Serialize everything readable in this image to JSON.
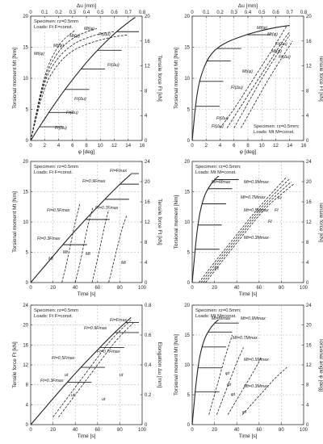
{
  "figure": {
    "panels": [
      {
        "id": "tl",
        "bottom_axis": {
          "label": "φ [deg]",
          "ticks": [
            "0",
            "2",
            "4",
            "6",
            "8",
            "10",
            "12",
            "14",
            "16"
          ]
        },
        "top_axis": {
          "label": "Δu [mm]",
          "ticks": [
            "0",
            "0.1",
            "0.2",
            "0.3",
            "0.4",
            "0.5",
            "0.6",
            "0.7",
            "0.8"
          ]
        },
        "left_axis": {
          "label": "Torsional moment Mt [Nm]",
          "ticks": [
            "0",
            "5",
            "10",
            "15",
            "20"
          ]
        },
        "right_axis": {
          "label": "Tensile force Ft [kN]",
          "ticks": [
            "0",
            "4",
            "8",
            "12",
            "16",
            "20"
          ]
        },
        "legend": [
          "Specimen: rz=0.5mm",
          "Loads: Ft F=const."
        ],
        "curve_labels": [
          "Mt(φ)",
          "Mt(φ)",
          "Mt(φ)",
          "Mt(φ)",
          "Ft(Δu)",
          "Ft(Δu)",
          "Ft(Δu)",
          "Ft(Δu)",
          "Ft(Δu)"
        ]
      },
      {
        "id": "tr",
        "bottom_axis": {
          "label": "φ [deg]",
          "ticks": [
            "0",
            "2",
            "4",
            "6",
            "8",
            "10",
            "12",
            "14",
            "16"
          ]
        },
        "top_axis": {
          "label": "Δu [mm]",
          "ticks": [
            "0",
            "0.1",
            "0.2",
            "0.3",
            "0.4",
            "0.5",
            "0.6",
            "0.7",
            "0.8"
          ]
        },
        "left_axis": {
          "label": "Torsional moment Mt [Nm]",
          "ticks": [
            "0",
            "5",
            "10",
            "15",
            "20"
          ]
        },
        "right_axis": {
          "label": "Tensile force Ft [kN]",
          "ticks": [
            "0",
            "4",
            "8",
            "12",
            "16",
            "20"
          ]
        },
        "legend": [
          "Specimen: rz=0.5mm;",
          "Loads: Mt M=const."
        ],
        "curve_labels": [
          "Mt(φ)",
          "Mt(φ)",
          "Ft(Δu)",
          "Mt(φ)",
          "Ft(Δu)",
          "Mt(φ)",
          "Ft(Δu)",
          "Ft(Δu)",
          "Ft(Δu)"
        ]
      },
      {
        "id": "ml",
        "bottom_axis": {
          "label": "Time [s]",
          "ticks": [
            "0",
            "20",
            "40",
            "60",
            "80",
            "100"
          ]
        },
        "left_axis": {
          "label": "Torsional moment Mt [Nm]",
          "ticks": [
            "0",
            "5",
            "10",
            "15",
            "20"
          ]
        },
        "right_axis": {
          "label": "Tensile force Ft [kN]",
          "ticks": [
            "0",
            "4",
            "8",
            "12",
            "16",
            "20",
            "24"
          ]
        },
        "legend": [
          "Specimen: rz=0.5mm",
          "Loads: Ft F=const."
        ],
        "curve_labels": [
          "Ft=Fmax",
          "Ft=0.9Fmax",
          "Ft=0.7Fmax",
          "Ft=0.5Fmax",
          "Ft=0.3Fmax",
          "Mt",
          "Mt",
          "Mt",
          "Mt"
        ]
      },
      {
        "id": "mr",
        "bottom_axis": {
          "label": "Time [s]",
          "ticks": [
            "0",
            "20",
            "40",
            "60",
            "80",
            "100"
          ]
        },
        "left_axis": {
          "label": "Torsional moment [Nm]",
          "ticks": [
            "0",
            "5",
            "10",
            "15",
            "20"
          ]
        },
        "right_axis": {
          "label": "Tensile force [kN]",
          "ticks": [
            "0",
            "4",
            "8",
            "12",
            "16",
            "20",
            "24"
          ]
        },
        "legend": [
          "Specimen: rz=0.5mm;",
          "Loads: Mt M=const."
        ],
        "curve_labels": [
          "Mt=Mmax",
          "Mt=0.9Mmax",
          "Mt=0.7Mmax",
          "Mt=0.5Mmax",
          "Mt=0.3Mmax",
          "Ft",
          "Ft",
          "Ft",
          "Ft"
        ]
      },
      {
        "id": "bl",
        "bottom_axis": {
          "label": "Time [s]",
          "ticks": [
            "0",
            "20",
            "40",
            "60",
            "80",
            "100"
          ]
        },
        "left_axis": {
          "label": "Tensile force Ft [kN]",
          "ticks": [
            "0",
            "4",
            "8",
            "12",
            "16",
            "20",
            "24"
          ]
        },
        "right_axis": {
          "label": "Elongation Δu [mm]",
          "ticks": [
            "0",
            "0.2",
            "0.4",
            "0.6",
            "0.8"
          ]
        },
        "legend": [
          "Specimen: rz=0.5mm",
          "Loads: Ft F=const."
        ],
        "curve_labels": [
          "Ft=Fmax",
          "Ft=0.9Fmax",
          "Ft=0.7Fmax",
          "Ft=0.5Fmax",
          "Ft=0.3Fmax",
          "ut",
          "ut",
          "ut",
          "ut"
        ]
      },
      {
        "id": "br",
        "bottom_axis": {
          "label": "Time [s]",
          "ticks": [
            "0",
            "20",
            "40",
            "60",
            "80",
            "100"
          ]
        },
        "left_axis": {
          "label": "Torsional moment Mt [Nm]",
          "ticks": [
            "0",
            "5",
            "10",
            "15",
            "20"
          ]
        },
        "right_axis": {
          "label": "Torsional angle φ [deg]",
          "ticks": [
            "0",
            "4",
            "8",
            "12",
            "16",
            "20",
            "24"
          ]
        },
        "legend": [
          "Specimen: rz=0.5mm;",
          "Loads: Mt M=const."
        ],
        "curve_labels": [
          "Mt=Mmax",
          "Mt=0.9Mmax",
          "Mt=0.7Mmax",
          "Mt=0.5Mmax",
          "Mt=0.3Mmax",
          "φt",
          "φt",
          "φt",
          "φt"
        ]
      }
    ]
  },
  "chart_data": [
    {
      "type": "line",
      "xlabel": "φ [deg]",
      "x2label": "Δu [mm]",
      "ylabel": "Torsional moment Mt [Nm]",
      "y2label": "Tensile force Ft [kN]",
      "xlim": [
        0,
        16
      ],
      "x2lim": [
        0,
        0.8
      ],
      "ylim": [
        0,
        20
      ],
      "y2lim": [
        0,
        20
      ],
      "series": [
        {
          "name": "Mt(φ)",
          "style": "dashed",
          "x": [
            0,
            2,
            4,
            6,
            7.5
          ],
          "y": [
            0,
            11,
            15.5,
            17.5,
            18.5
          ]
        },
        {
          "name": "Mt(φ)",
          "style": "dashed",
          "x": [
            0,
            2,
            4,
            6,
            8,
            9.5
          ],
          "y": [
            0,
            10.5,
            14.5,
            16.5,
            17.5,
            18
          ]
        },
        {
          "name": "Mt(φ)",
          "style": "dashed",
          "x": [
            0,
            2,
            4,
            6,
            8,
            10,
            12
          ],
          "y": [
            0,
            10,
            13.5,
            15.5,
            16.5,
            17.2,
            17.5
          ]
        },
        {
          "name": "Mt(φ)",
          "style": "dashed",
          "x": [
            0,
            2,
            4,
            6,
            8,
            10,
            12,
            14
          ],
          "y": [
            0,
            9,
            12.5,
            14.5,
            15.5,
            16.2,
            16.7,
            17
          ]
        },
        {
          "name": "Ft(Δu)",
          "style": "solid",
          "x": [
            0,
            0.1,
            0.2,
            0.3,
            0.4,
            0.5,
            0.6,
            0.7,
            0.75
          ],
          "y": [
            0,
            3.5,
            6.8,
            9.8,
            12.6,
            15,
            17.2,
            19,
            19.8
          ]
        }
      ],
      "hold_levels": {
        "series": "Ft(Δu)",
        "values": [
          2.2,
          4.5,
          8.2,
          11.5,
          14.5,
          17.5
        ]
      }
    },
    {
      "type": "line",
      "xlabel": "φ [deg]",
      "x2label": "Δu [mm]",
      "ylabel": "Torsional moment Mt [Nm]",
      "y2label": "Tensile force Ft [kN]",
      "xlim": [
        0,
        16
      ],
      "x2lim": [
        0,
        0.8
      ],
      "ylim": [
        0,
        20
      ],
      "y2lim": [
        0,
        20
      ],
      "series": [
        {
          "name": "Mt(φ)",
          "style": "solid",
          "x": [
            0,
            0.5,
            1,
            2,
            3,
            4,
            5,
            6,
            8,
            10,
            12,
            14
          ],
          "y": [
            0,
            6,
            9.5,
            12.7,
            14.3,
            15.2,
            15.8,
            16.3,
            17.1,
            17.7,
            18.2,
            18.5
          ]
        },
        {
          "name": "Ft(Δu)",
          "style": "dashed",
          "x": [
            0.2,
            0.3,
            0.4,
            0.5,
            0.6,
            0.68
          ],
          "y": [
            2,
            5,
            8.5,
            12,
            15.5,
            18.5
          ]
        },
        {
          "name": "Ft(Δu)",
          "style": "dashed",
          "x": [
            0.25,
            0.35,
            0.45,
            0.55,
            0.65,
            0.7
          ],
          "y": [
            2,
            5.5,
            9,
            12.5,
            16,
            17.5
          ]
        },
        {
          "name": "Ft(Δu)",
          "style": "dashed",
          "x": [
            0.3,
            0.4,
            0.5,
            0.6,
            0.7
          ],
          "y": [
            2,
            6,
            10,
            13.5,
            17
          ]
        },
        {
          "name": "Ft(Δu)",
          "style": "dashed",
          "x": [
            0.35,
            0.45,
            0.55,
            0.65,
            0.72
          ],
          "y": [
            2,
            6,
            10,
            13.5,
            16
          ]
        }
      ],
      "hold_levels": {
        "series": "Mt(φ)",
        "values": [
          5.5,
          9.5,
          12.8,
          14.8,
          17
        ]
      }
    },
    {
      "type": "line",
      "xlabel": "Time [s]",
      "ylabel": "Torsional moment Mt [Nm]",
      "y2label": "Tensile force Ft [kN]",
      "xlim": [
        0,
        100
      ],
      "ylim": [
        0,
        20
      ],
      "y2lim": [
        0,
        24
      ],
      "series": [
        {
          "name": "Ft",
          "style": "solid",
          "x": [
            0,
            10,
            20,
            30,
            40,
            50,
            60,
            70,
            80,
            90
          ],
          "y2": [
            0,
            2.6,
            5.2,
            7.8,
            10.3,
            12.7,
            15,
            17.3,
            19.5,
            21.5
          ]
        },
        {
          "name": "Mt",
          "style": "dashed",
          "x": [
            28,
            32,
            36,
            40,
            44
          ],
          "y": [
            0,
            3,
            6.5,
            10,
            13
          ]
        },
        {
          "name": "Mt",
          "style": "dashed",
          "x": [
            40,
            44,
            48,
            52,
            56
          ],
          "y": [
            0,
            3,
            6.5,
            10,
            12.5
          ]
        },
        {
          "name": "Mt",
          "style": "dashed",
          "x": [
            55,
            59,
            63,
            67,
            70
          ],
          "y": [
            0,
            3,
            6.5,
            10,
            12
          ]
        },
        {
          "name": "Mt",
          "style": "dashed",
          "x": [
            70,
            74,
            78,
            82,
            86
          ],
          "y": [
            0,
            3,
            6,
            9,
            11
          ]
        }
      ],
      "hold_levels": {
        "series": "Ft",
        "y2": [
          7.5,
          12.5,
          16.5,
          19.5,
          21.6
        ]
      },
      "annotations": [
        "Ft=Fmax",
        "Ft=0.9Fmax",
        "Ft=0.7Fmax",
        "Ft=0.5Fmax",
        "Ft=0.3Fmax"
      ]
    },
    {
      "type": "line",
      "xlabel": "Time [s]",
      "ylabel": "Torsional moment [Nm]",
      "y2label": "Tensile force [kN]",
      "xlim": [
        0,
        100
      ],
      "ylim": [
        0,
        20
      ],
      "y2lim": [
        0,
        24
      ],
      "series": [
        {
          "name": "Mt",
          "style": "solid",
          "x": [
            0,
            5,
            10,
            15,
            20,
            25,
            30,
            35,
            38
          ],
          "y": [
            0,
            10,
            14,
            15.8,
            17,
            17.8,
            18.4,
            18.9,
            19
          ]
        },
        {
          "name": "Ft",
          "style": "dashed",
          "x": [
            6,
            20,
            40,
            60,
            85
          ],
          "y2": [
            0,
            4,
            9.5,
            15,
            21
          ]
        },
        {
          "name": "Ft",
          "style": "dashed",
          "x": [
            8,
            22,
            42,
            62,
            87
          ],
          "y2": [
            0,
            4,
            9.5,
            15,
            20.5
          ]
        },
        {
          "name": "Ft",
          "style": "dashed",
          "x": [
            10,
            24,
            44,
            64,
            89
          ],
          "y2": [
            0,
            4,
            9.5,
            15,
            20
          ]
        },
        {
          "name": "Ft",
          "style": "dashed",
          "x": [
            12,
            26,
            46,
            66,
            91
          ],
          "y2": [
            0,
            4,
            9.5,
            15,
            19.5
          ]
        }
      ],
      "hold_levels": {
        "series": "Mt",
        "y": [
          5.5,
          9.5,
          13,
          15.5,
          17
        ]
      },
      "annotations": [
        "Mt=Mmax",
        "Mt=0.9Mmax",
        "Mt=0.7Mmax",
        "Mt=0.5Mmax",
        "Mt=0.3Mmax"
      ]
    },
    {
      "type": "line",
      "xlabel": "Time [s]",
      "ylabel": "Tensile force Ft [kN]",
      "y2label": "Elongation Δu [mm]",
      "xlim": [
        0,
        100
      ],
      "ylim": [
        0,
        24
      ],
      "y2lim": [
        0,
        0.8
      ],
      "series": [
        {
          "name": "Ft",
          "style": "solid",
          "x": [
            0,
            10,
            20,
            30,
            40,
            50,
            60,
            70,
            80,
            90
          ],
          "y": [
            0,
            2.6,
            5.2,
            7.8,
            10.3,
            12.7,
            15,
            17.3,
            19.5,
            21.5
          ]
        },
        {
          "name": "ut",
          "style": "dashed",
          "x": [
            20,
            30,
            40,
            50,
            60,
            70,
            80,
            90
          ],
          "y2": [
            0.05,
            0.15,
            0.25,
            0.35,
            0.45,
            0.55,
            0.63,
            0.7
          ]
        },
        {
          "name": "ut",
          "style": "dashed",
          "x": [
            25,
            35,
            45,
            55,
            65,
            75,
            85,
            92
          ],
          "y2": [
            0.05,
            0.15,
            0.25,
            0.35,
            0.45,
            0.55,
            0.63,
            0.68
          ]
        }
      ],
      "hold_levels": {
        "series": "Ft",
        "y": [
          8.5,
          11.5,
          15.5,
          18.5,
          20.5
        ]
      },
      "annotations": [
        "Ft=Fmax",
        "Ft=0.9Fmax",
        "Ft=0.7Fmax",
        "Ft=0.5Fmax",
        "Ft=0.3Fmax"
      ]
    },
    {
      "type": "line",
      "xlabel": "Time [s]",
      "ylabel": "Torsional moment Mt [Nm]",
      "y2label": "Torsional angle φ [deg]",
      "xlim": [
        0,
        100
      ],
      "ylim": [
        0,
        20
      ],
      "y2lim": [
        0,
        24
      ],
      "series": [
        {
          "name": "Mt",
          "style": "solid",
          "x": [
            0,
            5,
            10,
            15,
            20,
            25,
            30,
            35,
            38
          ],
          "y": [
            0,
            10,
            14,
            15.8,
            17,
            17.8,
            18.4,
            18.9,
            19
          ]
        },
        {
          "name": "φt",
          "style": "dashed",
          "x": [
            15,
            20,
            25,
            30,
            36
          ],
          "y2": [
            2,
            6,
            10,
            14,
            18
          ]
        },
        {
          "name": "φt",
          "style": "dashed",
          "x": [
            22,
            28,
            34,
            40,
            46
          ],
          "y2": [
            2,
            5.5,
            9,
            12.5,
            15.5
          ]
        },
        {
          "name": "φt",
          "style": "dashed",
          "x": [
            32,
            40,
            48,
            56,
            62
          ],
          "y2": [
            2,
            5,
            8,
            11,
            13.5
          ]
        },
        {
          "name": "φt",
          "style": "dashed",
          "x": [
            45,
            55,
            65,
            75,
            85
          ],
          "y2": [
            2,
            4.5,
            7,
            9.5,
            11.5
          ]
        }
      ],
      "hold_levels": {
        "series": "Mt",
        "y": [
          5.5,
          9.5,
          13,
          15.5,
          17
        ]
      },
      "annotations": [
        "Mt=Mmax",
        "Mt=0.9Mmax",
        "Mt=0.7Mmax",
        "Mt=0.5Mmax",
        "Mt=0.3Mmax"
      ]
    }
  ]
}
